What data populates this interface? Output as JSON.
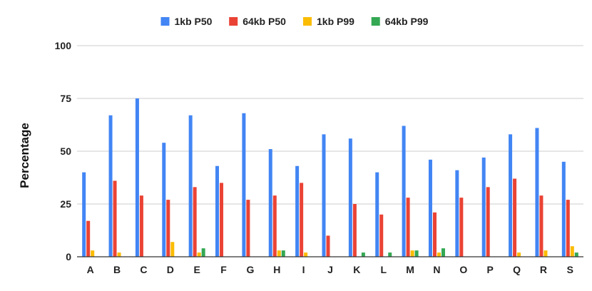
{
  "chart_data": {
    "type": "bar",
    "title": "",
    "xlabel": "",
    "ylabel": "Percentage",
    "ylim": [
      0,
      100
    ],
    "yticks": [
      0,
      25,
      50,
      75,
      100
    ],
    "grid": "horizontal",
    "legend_position": "top",
    "categories": [
      "A",
      "B",
      "C",
      "D",
      "E",
      "F",
      "G",
      "H",
      "I",
      "J",
      "K",
      "L",
      "M",
      "N",
      "O",
      "P",
      "Q",
      "R",
      "S"
    ],
    "series": [
      {
        "name": "1kb P50",
        "color": "#4285F4",
        "values": [
          40,
          67,
          75,
          54,
          67,
          43,
          68,
          51,
          43,
          58,
          56,
          40,
          62,
          46,
          41,
          47,
          58,
          61,
          45
        ]
      },
      {
        "name": "64kb P50",
        "color": "#EA4335",
        "values": [
          17,
          36,
          29,
          27,
          33,
          35,
          27,
          29,
          35,
          10,
          25,
          20,
          28,
          21,
          28,
          33,
          37,
          29,
          27
        ]
      },
      {
        "name": "1kb P99",
        "color": "#FBBC04",
        "values": [
          3,
          2,
          0,
          7,
          2,
          0,
          0,
          3,
          2,
          0,
          0,
          0,
          3,
          2,
          0,
          0,
          2,
          3,
          5
        ]
      },
      {
        "name": "64kb P99",
        "color": "#34A853",
        "values": [
          0,
          0,
          0,
          0,
          4,
          0,
          0,
          3,
          0,
          0,
          2,
          2,
          3,
          4,
          0,
          0,
          0,
          0,
          2
        ]
      }
    ]
  }
}
